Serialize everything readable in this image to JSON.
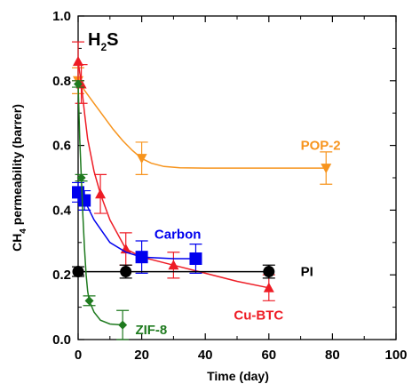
{
  "chart_data": {
    "type": "line",
    "panel_label": "H",
    "panel_label_sub": "2",
    "panel_label_end": "S",
    "xlabel": "Time (day)",
    "ylabel_pre": "CH",
    "ylabel_sub": "4",
    "ylabel_post": " permeability (barrer)",
    "xlim": [
      0,
      100
    ],
    "ylim": [
      0,
      1.0
    ],
    "x_ticks": [
      "0",
      "20",
      "40",
      "60",
      "80",
      "100"
    ],
    "y_ticks": [
      "0.0",
      "0.2",
      "0.4",
      "0.6",
      "0.8",
      "1.0"
    ],
    "grid": false,
    "series": [
      {
        "name": "POP-2",
        "color": "#f7941d",
        "marker": "triangle-down",
        "points": [
          {
            "x": 0,
            "y": 0.8,
            "err": 0.04
          },
          {
            "x": 20,
            "y": 0.56,
            "err": 0.05
          },
          {
            "x": 78,
            "y": 0.53,
            "err": 0.05
          }
        ],
        "curve": [
          [
            0,
            0.8
          ],
          [
            2,
            0.77
          ],
          [
            5,
            0.73
          ],
          [
            8,
            0.69
          ],
          [
            11,
            0.65
          ],
          [
            14,
            0.615
          ],
          [
            17,
            0.585
          ],
          [
            20,
            0.56
          ],
          [
            23,
            0.545
          ],
          [
            27,
            0.535
          ],
          [
            32,
            0.531
          ],
          [
            40,
            0.53
          ],
          [
            60,
            0.53
          ],
          [
            78,
            0.53
          ]
        ]
      },
      {
        "name": "Cu-BTC",
        "color": "#ee1c25",
        "marker": "triangle-up",
        "points": [
          {
            "x": 0,
            "y": 0.86,
            "err": 0.06
          },
          {
            "x": 1,
            "y": 0.79,
            "err": 0.06
          },
          {
            "x": 7,
            "y": 0.45,
            "err": 0.06
          },
          {
            "x": 15,
            "y": 0.28,
            "err": 0.05
          },
          {
            "x": 30,
            "y": 0.23,
            "err": 0.04
          },
          {
            "x": 60,
            "y": 0.16,
            "err": 0.04
          }
        ],
        "curve": [
          [
            0,
            0.86
          ],
          [
            1,
            0.79
          ],
          [
            2,
            0.7
          ],
          [
            3,
            0.62
          ],
          [
            5,
            0.52
          ],
          [
            7,
            0.45
          ],
          [
            10,
            0.37
          ],
          [
            15,
            0.28
          ],
          [
            20,
            0.255
          ],
          [
            30,
            0.23
          ],
          [
            40,
            0.205
          ],
          [
            50,
            0.18
          ],
          [
            60,
            0.16
          ]
        ]
      },
      {
        "name": "Carbon",
        "color": "#0000ee",
        "marker": "square",
        "points": [
          {
            "x": 0,
            "y": 0.455,
            "err": 0.03
          },
          {
            "x": 2,
            "y": 0.43,
            "err": 0.03
          },
          {
            "x": 20,
            "y": 0.255,
            "err": 0.05
          },
          {
            "x": 37,
            "y": 0.25,
            "err": 0.045
          }
        ],
        "curve": [
          [
            0,
            0.455
          ],
          [
            2,
            0.43
          ],
          [
            5,
            0.37
          ],
          [
            10,
            0.3
          ],
          [
            15,
            0.27
          ],
          [
            20,
            0.255
          ],
          [
            30,
            0.25
          ],
          [
            37,
            0.25
          ]
        ]
      },
      {
        "name": "PI",
        "color": "#000000",
        "marker": "circle",
        "points": [
          {
            "x": 0,
            "y": 0.21,
            "err": 0.015
          },
          {
            "x": 15,
            "y": 0.21,
            "err": 0.02
          },
          {
            "x": 60,
            "y": 0.21,
            "err": 0.02
          }
        ],
        "curve": [
          [
            0,
            0.21
          ],
          [
            60,
            0.21
          ]
        ]
      },
      {
        "name": "ZIF-8",
        "color": "#1e7a1e",
        "marker": "diamond",
        "points": [
          {
            "x": 0,
            "y": 0.79,
            "err": 0.01
          },
          {
            "x": 1,
            "y": 0.5,
            "err": 0.01
          },
          {
            "x": 3.5,
            "y": 0.12,
            "err": 0.015
          },
          {
            "x": 14,
            "y": 0.045,
            "err": 0.045
          }
        ],
        "curve": [
          [
            0,
            0.79
          ],
          [
            0.5,
            0.62
          ],
          [
            1,
            0.5
          ],
          [
            1.5,
            0.38
          ],
          [
            2,
            0.28
          ],
          [
            2.5,
            0.2
          ],
          [
            3,
            0.15
          ],
          [
            3.5,
            0.12
          ],
          [
            5,
            0.085
          ],
          [
            7,
            0.06
          ],
          [
            10,
            0.048
          ],
          [
            14,
            0.045
          ]
        ]
      }
    ],
    "labels": [
      {
        "text": "POP-2",
        "color": "#f7941d",
        "x": 70,
        "y": 0.6
      },
      {
        "text": "Carbon",
        "color": "#0000ee",
        "x": 24,
        "y": 0.325
      },
      {
        "text": "PI",
        "color": "#000000",
        "x": 70,
        "y": 0.21
      },
      {
        "text": "Cu-BTC",
        "color": "#ee1c25",
        "x": 49,
        "y": 0.075
      },
      {
        "text": "ZIF-8",
        "color": "#1e7a1e",
        "x": 18,
        "y": 0.03
      }
    ]
  }
}
